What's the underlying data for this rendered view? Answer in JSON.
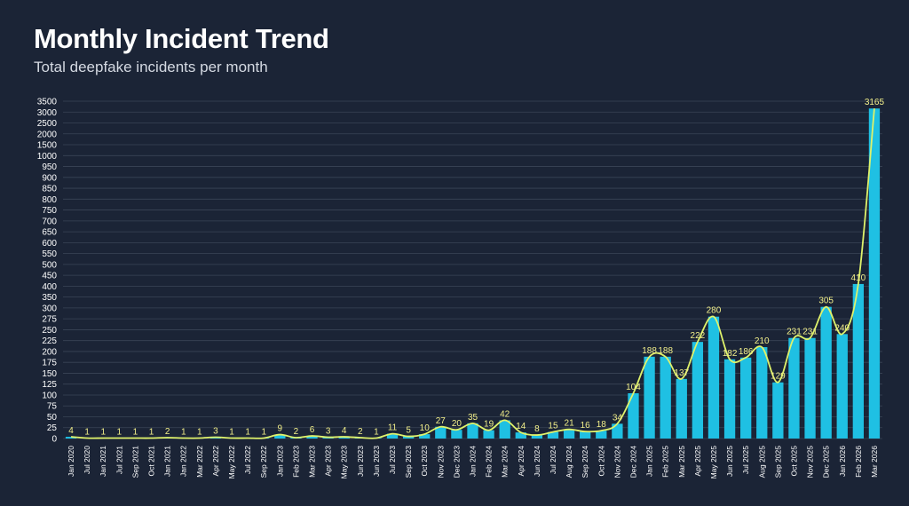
{
  "header": {
    "title": "Monthly Incident Trend",
    "subtitle": "Total deepfake incidents per month"
  },
  "colors": {
    "background": "#1b2436",
    "bar": "#1fc0e3",
    "trend_line": "#dff26b",
    "data_label": "#f2ef8a",
    "grid": "#3a4456",
    "text": "#ffffff"
  },
  "chart_data": {
    "type": "bar",
    "title": "Monthly Incident Trend",
    "subtitle": "Total deepfake incidents per month",
    "xlabel": "",
    "ylabel": "",
    "ylim": [
      0,
      3500
    ],
    "y_ticks": [
      0,
      25,
      50,
      75,
      100,
      125,
      150,
      175,
      200,
      225,
      250,
      275,
      300,
      350,
      400,
      450,
      500,
      550,
      600,
      650,
      700,
      750,
      800,
      850,
      900,
      950,
      1000,
      1500,
      2000,
      2500,
      3000,
      3500
    ],
    "grid": true,
    "legend": "none",
    "categories": [
      "Jan 2020",
      "Jul 2020",
      "Jan 2021",
      "Jul 2021",
      "Sep 2021",
      "Oct 2021",
      "Jan 2021",
      "Jan 2022",
      "Mar 2022",
      "Apr 2022",
      "May 2022",
      "Jul 2022",
      "Sep 2022",
      "Jan 2023",
      "Feb 2023",
      "Mar 2023",
      "Apr 2023",
      "May 2023",
      "Jun 2023",
      "Jun 2023",
      "Jul 2023",
      "Sep 2023",
      "Oct 2023",
      "Nov 2023",
      "Dec 2023",
      "Jan 2024",
      "Feb 2024",
      "Mar 2024",
      "Apr 2024",
      "Jun 2024",
      "Jul 2024",
      "Aug 2024",
      "Sep 2024",
      "Oct 2024",
      "Nov 2024",
      "Dec 2024",
      "Jan 2025",
      "Feb 2025",
      "Mar 2025",
      "Apr 2025",
      "May 2025",
      "Jun 2025",
      "Jul 2025",
      "Aug 2025",
      "Sep 2025",
      "Oct 2025",
      "Nov 2025",
      "Dec 2025",
      "Jan 2026",
      "Feb 2026",
      "Mar 2026"
    ],
    "series": [
      {
        "name": "Incidents",
        "type": "bar+smoothed-line",
        "values": [
          4,
          1,
          1,
          1,
          1,
          1,
          2,
          1,
          1,
          3,
          1,
          1,
          1,
          9,
          2,
          6,
          3,
          4,
          2,
          1,
          11,
          5,
          10,
          27,
          20,
          35,
          19,
          42,
          14,
          8,
          15,
          21,
          16,
          18,
          34,
          104,
          188,
          188,
          137,
          222,
          280,
          182,
          186,
          210,
          129,
          231,
          231,
          305,
          240,
          410,
          3165
        ]
      }
    ],
    "data_labels": [
      "4",
      "1",
      "1",
      "1",
      "1",
      "1",
      "2",
      "1",
      "1",
      "3",
      "1",
      "1",
      "1",
      "9",
      "2",
      "6",
      "3",
      "4",
      "2",
      "1",
      "11",
      "5",
      "10",
      "27",
      "20",
      "35",
      "19",
      "42",
      "14",
      "8",
      "15",
      "21",
      "16",
      "18",
      "34",
      "104",
      "188",
      "188",
      "137",
      "222",
      "280",
      "182",
      "186",
      "210",
      "129",
      "231",
      "231",
      "305",
      "240",
      "410",
      "3165"
    ]
  }
}
